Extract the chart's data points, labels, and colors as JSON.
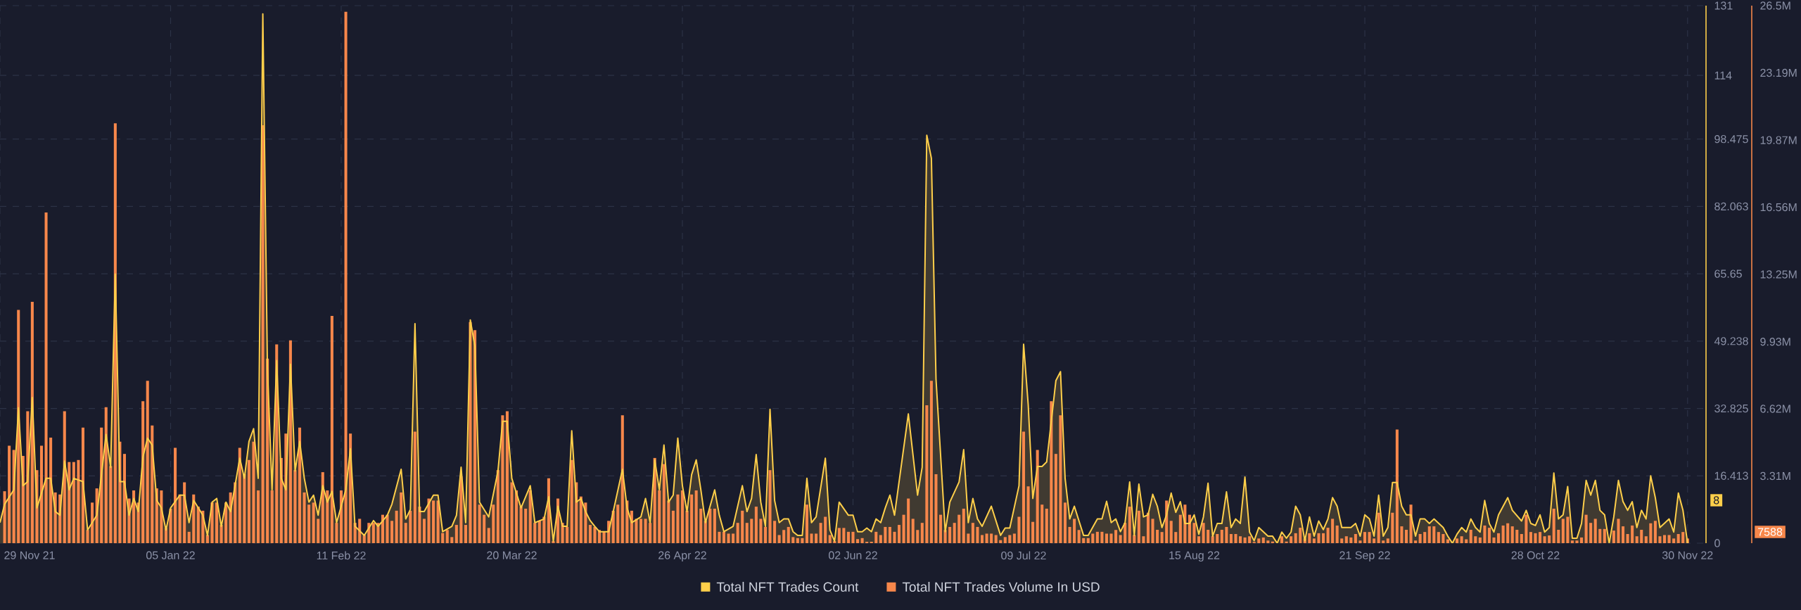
{
  "chart_data": {
    "type": "bar",
    "x": [
      "2021-11-30",
      "2021-12-01",
      "2021-12-02",
      "2021-12-03",
      "2021-12-04",
      "2021-12-05",
      "2021-12-06",
      "2021-12-07",
      "2021-12-08",
      "2021-12-09",
      "2021-12-10",
      "2021-12-11",
      "2021-12-12",
      "2021-12-13",
      "2021-12-14",
      "2021-12-15",
      "2021-12-16",
      "2021-12-17",
      "2021-12-18",
      "2021-12-19",
      "2021-12-20",
      "2021-12-21",
      "2021-12-22",
      "2021-12-23",
      "2021-12-24",
      "2021-12-25",
      "2021-12-26",
      "2021-12-27",
      "2021-12-28",
      "2021-12-29",
      "2021-12-30",
      "2021-12-31",
      "2022-01-01",
      "2022-01-02",
      "2022-01-03",
      "2022-01-04",
      "2022-01-05",
      "2022-01-06",
      "2022-01-07",
      "2022-01-08",
      "2022-01-09",
      "2022-01-10",
      "2022-01-11",
      "2022-01-12",
      "2022-01-13",
      "2022-01-14",
      "2022-01-15",
      "2022-01-16",
      "2022-01-17",
      "2022-01-18",
      "2022-01-19",
      "2022-01-20",
      "2022-01-21",
      "2022-01-22",
      "2022-01-23",
      "2022-01-24",
      "2022-01-25",
      "2022-01-26",
      "2022-01-27",
      "2022-01-28",
      "2022-01-29",
      "2022-01-30",
      "2022-01-31",
      "2022-02-01",
      "2022-02-02",
      "2022-02-03",
      "2022-02-04",
      "2022-02-05",
      "2022-02-06",
      "2022-02-07",
      "2022-02-08",
      "2022-02-09",
      "2022-02-10",
      "2022-02-11",
      "2022-02-12",
      "2022-02-13",
      "2022-02-14",
      "2022-02-15",
      "2022-02-16",
      "2022-02-17",
      "2022-02-18",
      "2022-02-19",
      "2022-02-20",
      "2022-02-21",
      "2022-02-22",
      "2022-02-23",
      "2022-02-24",
      "2022-02-25",
      "2022-02-26",
      "2022-02-27",
      "2022-02-28",
      "2022-03-01",
      "2022-03-02",
      "2022-03-03",
      "2022-03-04",
      "2022-03-05",
      "2022-03-06",
      "2022-03-07",
      "2022-03-08",
      "2022-03-09",
      "2022-03-10",
      "2022-03-11",
      "2022-03-12",
      "2022-03-13",
      "2022-03-14",
      "2022-03-15",
      "2022-03-16",
      "2022-03-17",
      "2022-03-18",
      "2022-03-19",
      "2022-03-20",
      "2022-03-21",
      "2022-03-22",
      "2022-03-23",
      "2022-03-24",
      "2022-03-25",
      "2022-03-26",
      "2022-03-27",
      "2022-03-28",
      "2022-03-29",
      "2022-03-30",
      "2022-03-31",
      "2022-04-01",
      "2022-04-02",
      "2022-04-03",
      "2022-04-04",
      "2022-04-05",
      "2022-04-06",
      "2022-04-07",
      "2022-04-08",
      "2022-04-09",
      "2022-04-10",
      "2022-04-11",
      "2022-04-12",
      "2022-04-13",
      "2022-04-14",
      "2022-04-15",
      "2022-04-16",
      "2022-04-17",
      "2022-04-18",
      "2022-04-19",
      "2022-04-20",
      "2022-04-21",
      "2022-04-22",
      "2022-04-23",
      "2022-04-24",
      "2022-04-25",
      "2022-04-26",
      "2022-04-27",
      "2022-04-28",
      "2022-04-29",
      "2022-04-30",
      "2022-05-01",
      "2022-05-02",
      "2022-05-03",
      "2022-05-04",
      "2022-05-05",
      "2022-05-06",
      "2022-05-07",
      "2022-05-08",
      "2022-05-09",
      "2022-05-10",
      "2022-05-11",
      "2022-05-12",
      "2022-05-13",
      "2022-05-14",
      "2022-05-15",
      "2022-05-16",
      "2022-05-17",
      "2022-05-18",
      "2022-05-19",
      "2022-05-20",
      "2022-05-21",
      "2022-05-22",
      "2022-05-23",
      "2022-05-24",
      "2022-05-25",
      "2022-05-26",
      "2022-05-27",
      "2022-05-28",
      "2022-05-29",
      "2022-05-30",
      "2022-05-31",
      "2022-06-01",
      "2022-06-02",
      "2022-06-03",
      "2022-06-04",
      "2022-06-05",
      "2022-06-06",
      "2022-06-07",
      "2022-06-08",
      "2022-06-09",
      "2022-06-10",
      "2022-06-11",
      "2022-06-12",
      "2022-06-13",
      "2022-06-14",
      "2022-06-15",
      "2022-06-16",
      "2022-06-17",
      "2022-06-18",
      "2022-06-19",
      "2022-06-20",
      "2022-06-21",
      "2022-06-22",
      "2022-06-23",
      "2022-06-24",
      "2022-06-25",
      "2022-06-26",
      "2022-06-27",
      "2022-06-28",
      "2022-06-29",
      "2022-06-30",
      "2022-07-01",
      "2022-07-02",
      "2022-07-03",
      "2022-07-04",
      "2022-07-05",
      "2022-07-06",
      "2022-07-07",
      "2022-07-08",
      "2022-07-09",
      "2022-07-10",
      "2022-07-11",
      "2022-07-12",
      "2022-07-13",
      "2022-07-14",
      "2022-07-15",
      "2022-07-16",
      "2022-07-17",
      "2022-07-18",
      "2022-07-19",
      "2022-07-20",
      "2022-07-21",
      "2022-07-22",
      "2022-07-23",
      "2022-07-24",
      "2022-07-25",
      "2022-07-26",
      "2022-07-27",
      "2022-07-28",
      "2022-07-29",
      "2022-07-30",
      "2022-07-31",
      "2022-08-01",
      "2022-08-02",
      "2022-08-03",
      "2022-08-04",
      "2022-08-05",
      "2022-08-06",
      "2022-08-07",
      "2022-08-08",
      "2022-08-09",
      "2022-08-10",
      "2022-08-11",
      "2022-08-12",
      "2022-08-13",
      "2022-08-14",
      "2022-08-15",
      "2022-08-16",
      "2022-08-17",
      "2022-08-18",
      "2022-08-19",
      "2022-08-20",
      "2022-08-21",
      "2022-08-22",
      "2022-08-23",
      "2022-08-24",
      "2022-08-25",
      "2022-08-26",
      "2022-08-27",
      "2022-08-28",
      "2022-08-29",
      "2022-08-30",
      "2022-08-31",
      "2022-09-01",
      "2022-09-02",
      "2022-09-03",
      "2022-09-04",
      "2022-09-05",
      "2022-09-06",
      "2022-09-07",
      "2022-09-08",
      "2022-09-09",
      "2022-09-10",
      "2022-09-11",
      "2022-09-12",
      "2022-09-13",
      "2022-09-14",
      "2022-09-15",
      "2022-09-16",
      "2022-09-17",
      "2022-09-18",
      "2022-09-19",
      "2022-09-20",
      "2022-09-21",
      "2022-09-22",
      "2022-09-23",
      "2022-09-24",
      "2022-09-25",
      "2022-09-26",
      "2022-09-27",
      "2022-09-28",
      "2022-09-29",
      "2022-09-30",
      "2022-10-01",
      "2022-10-02",
      "2022-10-03",
      "2022-10-04",
      "2022-10-05",
      "2022-10-06",
      "2022-10-07",
      "2022-10-08",
      "2022-10-09",
      "2022-10-10",
      "2022-10-11",
      "2022-10-12",
      "2022-10-13",
      "2022-10-14",
      "2022-10-15",
      "2022-10-16",
      "2022-10-17",
      "2022-10-18",
      "2022-10-19",
      "2022-10-20",
      "2022-10-21",
      "2022-10-22",
      "2022-10-23",
      "2022-10-24",
      "2022-10-25",
      "2022-10-26",
      "2022-10-27",
      "2022-10-28",
      "2022-10-29",
      "2022-10-30",
      "2022-10-31",
      "2022-11-01",
      "2022-11-02",
      "2022-11-03",
      "2022-11-04",
      "2022-11-05",
      "2022-11-06",
      "2022-11-07",
      "2022-11-08",
      "2022-11-09",
      "2022-11-10",
      "2022-11-11",
      "2022-11-12",
      "2022-11-13",
      "2022-11-14",
      "2022-11-15",
      "2022-11-16",
      "2022-11-17",
      "2022-11-18",
      "2022-11-19",
      "2022-11-20",
      "2022-11-21",
      "2022-11-22",
      "2022-11-23",
      "2022-11-24",
      "2022-11-25",
      "2022-11-26",
      "2022-11-27",
      "2022-11-28",
      "2022-11-29",
      "2022-11-30"
    ],
    "series": [
      {
        "name": "Total NFT Trades Count",
        "type": "area",
        "color": "#ffcf4a",
        "x": [
          "2021-11-29",
          "2021-11-30",
          "2021-12-02",
          "2021-12-03",
          "2021-12-04",
          "2021-12-05",
          "2021-12-06",
          "2021-12-07",
          "2021-12-09",
          "2021-12-10",
          "2021-12-11",
          "2021-12-12",
          "2021-12-13",
          "2021-12-14",
          "2021-12-15",
          "2021-12-17",
          "2021-12-18",
          "2021-12-20",
          "2021-12-22",
          "2021-12-23",
          "2021-12-24",
          "2021-12-25",
          "2021-12-26",
          "2021-12-27",
          "2021-12-28",
          "2021-12-29",
          "2021-12-30",
          "2021-12-31",
          "2022-01-01",
          "2022-01-02",
          "2022-01-03",
          "2022-01-04",
          "2022-01-05",
          "2022-01-07",
          "2022-01-08",
          "2022-01-09",
          "2022-01-10",
          "2022-01-12",
          "2022-01-13",
          "2022-01-14",
          "2022-01-15",
          "2022-01-16",
          "2022-01-17",
          "2022-01-18",
          "2022-01-20",
          "2022-01-21",
          "2022-01-22",
          "2022-01-23",
          "2022-01-24",
          "2022-01-25",
          "2022-01-26",
          "2022-01-27",
          "2022-01-28",
          "2022-01-29",
          "2022-01-30",
          "2022-01-31",
          "2022-02-01",
          "2022-02-02",
          "2022-02-03",
          "2022-02-04",
          "2022-02-05",
          "2022-02-06",
          "2022-02-07",
          "2022-02-08",
          "2022-02-09",
          "2022-02-10",
          "2022-02-12",
          "2022-02-13",
          "2022-02-14",
          "2022-02-16",
          "2022-02-18",
          "2022-02-19",
          "2022-02-21",
          "2022-02-22",
          "2022-02-24",
          "2022-02-25",
          "2022-02-26",
          "2022-02-27",
          "2022-02-28",
          "2022-03-01",
          "2022-03-03",
          "2022-03-04",
          "2022-03-05",
          "2022-03-07",
          "2022-03-08",
          "2022-03-09",
          "2022-03-10",
          "2022-03-11",
          "2022-03-12",
          "2022-03-13",
          "2022-03-15",
          "2022-03-17",
          "2022-03-18",
          "2022-03-19",
          "2022-03-20",
          "2022-03-22",
          "2022-03-24",
          "2022-03-25",
          "2022-03-27",
          "2022-03-28",
          "2022-03-29",
          "2022-03-30",
          "2022-03-31",
          "2022-04-01",
          "2022-04-02",
          "2022-04-03",
          "2022-04-04",
          "2022-04-05",
          "2022-04-06",
          "2022-04-07",
          "2022-04-08",
          "2022-04-10",
          "2022-04-11",
          "2022-04-13",
          "2022-04-14",
          "2022-04-15",
          "2022-04-17",
          "2022-04-18",
          "2022-04-19",
          "2022-04-20",
          "2022-04-21",
          "2022-04-22",
          "2022-04-23",
          "2022-04-24",
          "2022-04-25",
          "2022-04-26",
          "2022-04-27",
          "2022-04-28",
          "2022-04-29",
          "2022-04-30",
          "2022-05-01",
          "2022-05-03",
          "2022-05-04",
          "2022-05-05",
          "2022-05-07",
          "2022-05-09",
          "2022-05-10",
          "2022-05-11",
          "2022-05-12",
          "2022-05-13",
          "2022-05-14",
          "2022-05-15",
          "2022-05-16",
          "2022-05-17",
          "2022-05-18",
          "2022-05-19",
          "2022-05-20",
          "2022-05-21",
          "2022-05-22",
          "2022-05-23",
          "2022-05-24",
          "2022-05-25",
          "2022-05-27",
          "2022-05-28",
          "2022-05-29",
          "2022-05-30",
          "2022-06-01",
          "2022-06-02",
          "2022-06-03",
          "2022-06-04",
          "2022-06-05",
          "2022-06-06",
          "2022-06-07",
          "2022-06-08",
          "2022-06-09",
          "2022-06-10",
          "2022-06-11",
          "2022-06-14",
          "2022-06-16",
          "2022-06-17",
          "2022-06-18",
          "2022-06-19",
          "2022-06-20",
          "2022-06-22",
          "2022-06-23",
          "2022-06-25",
          "2022-06-26",
          "2022-06-27",
          "2022-06-28",
          "2022-06-29",
          "2022-06-30",
          "2022-07-02",
          "2022-07-04",
          "2022-07-05",
          "2022-07-06",
          "2022-07-08",
          "2022-07-09",
          "2022-07-10",
          "2022-07-11",
          "2022-07-12",
          "2022-07-13",
          "2022-07-14",
          "2022-07-16",
          "2022-07-17",
          "2022-07-18",
          "2022-07-19",
          "2022-07-20",
          "2022-07-22",
          "2022-07-23",
          "2022-07-25",
          "2022-07-26",
          "2022-07-27",
          "2022-07-28",
          "2022-07-29",
          "2022-07-30",
          "2022-07-31",
          "2022-08-01",
          "2022-08-02",
          "2022-08-03",
          "2022-08-04",
          "2022-08-05",
          "2022-08-06",
          "2022-08-07",
          "2022-08-08",
          "2022-08-09",
          "2022-08-10",
          "2022-08-11",
          "2022-08-12",
          "2022-08-13",
          "2022-08-14",
          "2022-08-15",
          "2022-08-16",
          "2022-08-17",
          "2022-08-18",
          "2022-08-19",
          "2022-08-20",
          "2022-08-21",
          "2022-08-22",
          "2022-08-23",
          "2022-08-24",
          "2022-08-25",
          "2022-08-26",
          "2022-08-27",
          "2022-08-28",
          "2022-08-29",
          "2022-08-31",
          "2022-09-01",
          "2022-09-02",
          "2022-09-03",
          "2022-09-04",
          "2022-09-05",
          "2022-09-06",
          "2022-09-07",
          "2022-09-08",
          "2022-09-09",
          "2022-09-10",
          "2022-09-11",
          "2022-09-12",
          "2022-09-13",
          "2022-09-14",
          "2022-09-15",
          "2022-09-16",
          "2022-09-18",
          "2022-09-19",
          "2022-09-20",
          "2022-09-21",
          "2022-09-22",
          "2022-09-23",
          "2022-09-24",
          "2022-09-25",
          "2022-09-26",
          "2022-09-27",
          "2022-09-28",
          "2022-09-29",
          "2022-09-30",
          "2022-10-01",
          "2022-10-02",
          "2022-10-03",
          "2022-10-04",
          "2022-10-05",
          "2022-10-06",
          "2022-10-08",
          "2022-10-09",
          "2022-10-10",
          "2022-10-11",
          "2022-10-12",
          "2022-10-13",
          "2022-10-14",
          "2022-10-15",
          "2022-10-16",
          "2022-10-17",
          "2022-10-18",
          "2022-10-19",
          "2022-10-20",
          "2022-10-22",
          "2022-10-23",
          "2022-10-25",
          "2022-10-26",
          "2022-10-27",
          "2022-10-28",
          "2022-10-29",
          "2022-10-30",
          "2022-10-31",
          "2022-11-01",
          "2022-11-02",
          "2022-11-03",
          "2022-11-04",
          "2022-11-05",
          "2022-11-06",
          "2022-11-07",
          "2022-11-08",
          "2022-11-09",
          "2022-11-10",
          "2022-11-11",
          "2022-11-12",
          "2022-11-13",
          "2022-11-14",
          "2022-11-15",
          "2022-11-16",
          "2022-11-17",
          "2022-11-18",
          "2022-11-19",
          "2022-11-20",
          "2022-11-21",
          "2022-11-22",
          "2022-11-23",
          "2022-11-24",
          "2022-11-26",
          "2022-11-27",
          "2022-11-28",
          "2022-11-29",
          "2022-11-30"
        ],
        "values": [
          5,
          9.5,
          13,
          33,
          14,
          15,
          35.5,
          8.6,
          15.8,
          15.8,
          7.7,
          6.8,
          20,
          13,
          15.8,
          15,
          3.2,
          6.8,
          26.5,
          18.5,
          65.6,
          15,
          15,
          6.8,
          10.9,
          7.7,
          21,
          25.6,
          23.9,
          10.4,
          8.6,
          3.2,
          8.6,
          11.7,
          11.7,
          5,
          10.4,
          6.8,
          1.9,
          10,
          10.9,
          4.1,
          10,
          7.7,
          20.7,
          15.8,
          24.8,
          27.9,
          15.8,
          129,
          42.7,
          13,
          44.5,
          15.8,
          13,
          43.6,
          17.6,
          24.8,
          15.8,
          10,
          11.7,
          6.8,
          14,
          10,
          12.6,
          5,
          13,
          23,
          4.1,
          1.9,
          5.5,
          4.1,
          6.8,
          9.5,
          18,
          5.9,
          8.2,
          53.5,
          7.7,
          7.7,
          11.7,
          11.7,
          2.8,
          4.1,
          6.8,
          18.5,
          5,
          54.4,
          48,
          10,
          6.4,
          17.6,
          29.7,
          29.7,
          15.8,
          8.6,
          14,
          5,
          5.9,
          11.3,
          0.5,
          9,
          4.1,
          4.1,
          27.4,
          10,
          10.9,
          7.7,
          5.5,
          4.1,
          2.8,
          2.8,
          7.7,
          18,
          8.6,
          5,
          6.4,
          10.9,
          5,
          20.3,
          13,
          23.9,
          10,
          11.7,
          25.6,
          14,
          7.7,
          16.7,
          20.3,
          13,
          5,
          13,
          6.8,
          2.8,
          4.1,
          14,
          7.7,
          10.9,
          21.6,
          10,
          4.1,
          32.6,
          10.4,
          5,
          5.9,
          5.9,
          2.8,
          1.9,
          1.9,
          15.8,
          5,
          6.4,
          20.7,
          3.2,
          0.5,
          10,
          6.8,
          6.8,
          2.8,
          2.8,
          3.7,
          2.8,
          5.9,
          5,
          8.6,
          11.7,
          6.8,
          31.5,
          11.7,
          18.5,
          99.4,
          93.8,
          40,
          2.8,
          10,
          14.9,
          22.8,
          5,
          10.9,
          5.9,
          4.1,
          9,
          1.9,
          3.7,
          3.7,
          14,
          48.5,
          33.7,
          10.9,
          18.7,
          18.7,
          19.8,
          39.6,
          41.8,
          15.8,
          5.9,
          9,
          1.9,
          1.9,
          5.9,
          5.9,
          10.2,
          5,
          5.9,
          2.8,
          5,
          14.9,
          1.9,
          14.4,
          6.4,
          6.9,
          11.9,
          9,
          3.8,
          6.9,
          12.2,
          7.5,
          10.1,
          4.8,
          4.8,
          6.9,
          2.2,
          6.4,
          14.6,
          1.7,
          4.8,
          4.8,
          12.5,
          3.8,
          5.9,
          4.8,
          16.1,
          2.7,
          0.6,
          3.8,
          1.7,
          1.7,
          0,
          2.7,
          1.2,
          2.7,
          9,
          6.9,
          0.6,
          6.4,
          1.7,
          5.4,
          3.3,
          5.9,
          11.1,
          9,
          3.8,
          3.8,
          4.8,
          1.7,
          6.9,
          5.9,
          1.7,
          11.7,
          1.7,
          3.8,
          14.8,
          14.8,
          9,
          6.9,
          6.9,
          1.7,
          5.9,
          5.9,
          4.8,
          5.9,
          3.8,
          1.7,
          0,
          2.2,
          3.8,
          2.7,
          5.9,
          3.8,
          2.7,
          10.4,
          4.8,
          2.7,
          6.9,
          11.1,
          8,
          5.4,
          8,
          4.8,
          4.3,
          6.9,
          2.7,
          3.8,
          17.1,
          5.9,
          6.9,
          13.8,
          1.2,
          1.2,
          4.8,
          15.3,
          11.7,
          15.3,
          8,
          6.9,
          0,
          6.4,
          15.3,
          10.1,
          8,
          10.1,
          3.8,
          8,
          5.9,
          16.4,
          11.1,
          3.8,
          5.9,
          2.7,
          12.2,
          8,
          0
        ]
      },
      {
        "name": "Total NFT Trades Volume In USD",
        "color": "#f7874b",
        "axis": "y2",
        "values": [
          2.56,
          4.8,
          4.6,
          11.5,
          4.3,
          6.5,
          11.9,
          3.6,
          4.8,
          16.3,
          5.2,
          2.5,
          2.4,
          6.5,
          4.0,
          4.0,
          4.1,
          5.7,
          0.65,
          2.0,
          2.7,
          5.7,
          6.7,
          3.8,
          20.7,
          5.0,
          4.4,
          2.2,
          2.6,
          2.0,
          7.0,
          8.0,
          5.8,
          2.7,
          2.6,
          0.75,
          1.7,
          4.7,
          2.4,
          3.0,
          0.56,
          2.4,
          1.8,
          1.6,
          0.4,
          2.0,
          2.0,
          0.9,
          2.0,
          2.5,
          3.0,
          4.7,
          3.4,
          4.1,
          5.0,
          2.6,
          20.6,
          9.1,
          2.6,
          9.8,
          4.2,
          5.4,
          10.0,
          3.6,
          5.7,
          2.5,
          1.9,
          2.0,
          1.2,
          3.5,
          2.6,
          11.2,
          1.0,
          2.6,
          26.2,
          5.4,
          1.0,
          1.2,
          0.4,
          1.0,
          1.0,
          1.0,
          1.4,
          1.4,
          1.1,
          1.6,
          2.5,
          1.0,
          1.6,
          5.5,
          1.8,
          1.2,
          2.2,
          2.1,
          2.1,
          0.5,
          0.65,
          0.3,
          0.9,
          3.3,
          0.9,
          10.9,
          10.5,
          1.9,
          1.4,
          0.75,
          1.9,
          3.6,
          6.3,
          6.5,
          3.0,
          2.6,
          1.8,
          1.7,
          2.6,
          1.0,
          1.1,
          1.3,
          3.2,
          0.1,
          2.2,
          1.0,
          0.8,
          4.1,
          3.0,
          2.3,
          2.0,
          0.9,
          0.8,
          0.65,
          0.56,
          1.1,
          1.6,
          1.9,
          6.3,
          2.1,
          1.6,
          1.2,
          1.2,
          1.2,
          1.0,
          4.2,
          2.6,
          3.9,
          2.1,
          1.6,
          2.4,
          2.6,
          1.6,
          2.4,
          2.6,
          1.7,
          1.1,
          1.7,
          1.7,
          0.56,
          0.56,
          0.47,
          0.47,
          1.0,
          1.6,
          1.0,
          1.2,
          1.8,
          1.2,
          0.8,
          3.6,
          1.1,
          0.4,
          0.65,
          0.8,
          0.3,
          0.25,
          0.25,
          1.9,
          0.47,
          0.47,
          1.0,
          1.3,
          0.4,
          0.1,
          0.75,
          0.75,
          0.56,
          0.56,
          0.2,
          0.25,
          0.07,
          0.07,
          0.56,
          0.4,
          0.8,
          0.8,
          0.56,
          0.9,
          1.4,
          2.2,
          1.2,
          0.65,
          1.0,
          6.8,
          8.0,
          3.4,
          1.4,
          0.65,
          0.8,
          1.0,
          1.4,
          1.7,
          0.47,
          1.0,
          0.8,
          0.4,
          0.47,
          0.47,
          0.4,
          0.15,
          0.3,
          0.4,
          0.47,
          1.3,
          5.5,
          2.8,
          1.05,
          4.6,
          1.9,
          1.7,
          7.0,
          4.4,
          6.3,
          2.0,
          0.8,
          1.2,
          0.65,
          0.25,
          0.25,
          0.47,
          0.56,
          0.56,
          0.47,
          0.47,
          0.65,
          0.4,
          1.0,
          1.8,
          0.4,
          1.6,
          0.34,
          1.5,
          1.2,
          0.66,
          0.55,
          2.1,
          1.1,
          0.55,
          1.4,
          1.9,
          1.4,
          1.0,
          0.34,
          1.0,
          0.66,
          0.34,
          0.45,
          0.66,
          0.8,
          0.45,
          0.45,
          0.34,
          0.28,
          0.34,
          0.06,
          0.23,
          0.28,
          0.13,
          0.08,
          null,
          0.34,
          0.08,
          0.34,
          0.49,
          0.76,
          0.23,
          0.49,
          0.23,
          0.49,
          0.49,
          0.76,
          1.2,
          0.87,
          0.23,
          0.34,
          0.28,
          0.45,
          0.13,
          0.55,
          0.55,
          0.23,
          1.5,
          0.13,
          0.23,
          1.5,
          5.6,
          0.83,
          0.66,
          1.9,
          0.13,
          0.45,
          0.55,
          0.83,
          0.83,
          0.55,
          0.45,
          0.19,
          0.02,
          0.23,
          0.34,
          0.19,
          0.66,
          0.34,
          0.28,
          0.87,
          0.76,
          0.28,
          0.49,
          0.87,
          0.98,
          0.83,
          0.66,
          0.45,
          1.4,
          0.55,
          0.49,
          0.55,
          0.34,
          0.38,
          1.7,
          0.66,
          1.2,
          1.3,
          0.13,
          0.13,
          0.28,
          1.4,
          1.0,
          1.2,
          0.7,
          0.7,
          0,
          0.62,
          1.2,
          0.83,
          0.45,
          0.87,
          0.34,
          0.66,
          0.34,
          0.98,
          1.1,
          0.34,
          0.4,
          0.4,
          0.23,
          0.45,
          0.55,
          0.23
        ]
      }
    ],
    "xlim": [
      "2021-11-29",
      "2022-12-04"
    ],
    "xticks": [
      {
        "value": "2021-11-29",
        "label": "29 Nov 21"
      },
      {
        "value": "2022-01-05",
        "label": "05 Jan 22"
      },
      {
        "value": "2022-02-11",
        "label": "11 Feb 22"
      },
      {
        "value": "2022-03-20",
        "label": "20 Mar 22"
      },
      {
        "value": "2022-04-26",
        "label": "26 Apr 22"
      },
      {
        "value": "2022-06-02",
        "label": "02 Jun 22"
      },
      {
        "value": "2022-07-09",
        "label": "09 Jul 22"
      },
      {
        "value": "2022-08-15",
        "label": "15 Aug 22"
      },
      {
        "value": "2022-09-21",
        "label": "21 Sep 22"
      },
      {
        "value": "2022-10-28",
        "label": "28 Oct 22"
      },
      {
        "value": "2022-11-30",
        "label": "30 Nov 22"
      }
    ],
    "ylim": [
      0,
      131
    ],
    "yticks": [
      0,
      16.413,
      32.825,
      49.238,
      65.65,
      82.063,
      98.475,
      114,
      131
    ],
    "y2lim": [
      0,
      26.5
    ],
    "y2ticks": [
      {
        "value": 3.3125,
        "label": "3.31M"
      },
      {
        "value": 6.625,
        "label": "6.62M"
      },
      {
        "value": 9.93,
        "label": "9.93M"
      },
      {
        "value": 13.25,
        "label": "13.25M"
      },
      {
        "value": 16.5625,
        "label": "16.56M"
      },
      {
        "value": 19.87,
        "label": "19.87M"
      },
      {
        "value": 23.1875,
        "label": "23.19M"
      },
      {
        "value": 26.5,
        "label": "26.5M"
      }
    ],
    "grid": true,
    "legend": "bottom",
    "annotations": [
      "8",
      "7588"
    ]
  }
}
